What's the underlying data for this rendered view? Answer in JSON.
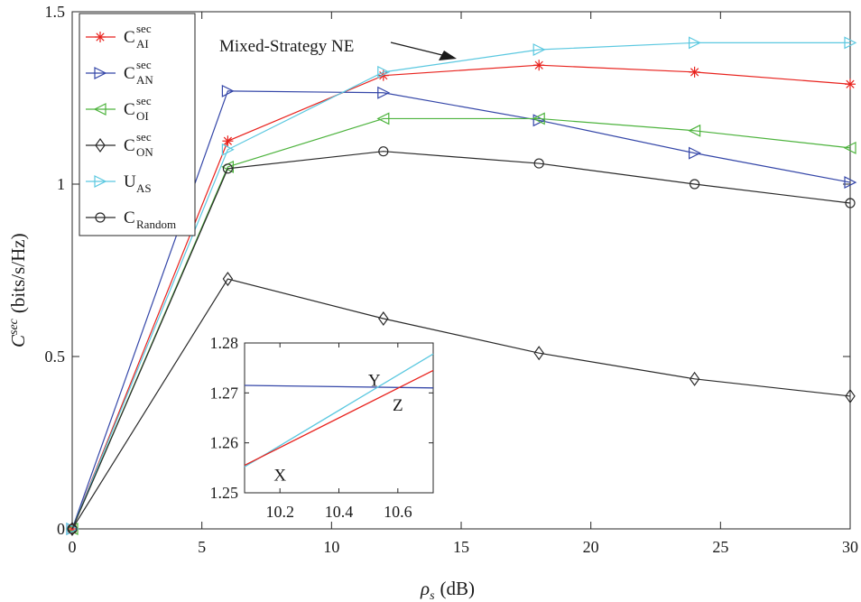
{
  "chart_data": {
    "type": "line",
    "xlabel_symbol": "ρ",
    "xlabel_sub": "s",
    "xlabel_unit": "(dB)",
    "ylabel_symbol": "C",
    "ylabel_sup": "sec",
    "ylabel_unit": "(bits/s/Hz)",
    "xlim": [
      0,
      30
    ],
    "ylim": [
      0,
      1.5
    ],
    "x_ticks": [
      0,
      5,
      10,
      15,
      20,
      25,
      30
    ],
    "y_ticks": [
      0,
      0.5,
      1,
      1.5
    ],
    "x_tick_labels": [
      "0",
      "5",
      "10",
      "15",
      "20",
      "25",
      "30"
    ],
    "y_tick_labels": [
      "0",
      "0.5",
      "1",
      "1.5"
    ],
    "x": [
      0,
      6,
      12,
      18,
      24,
      30
    ],
    "series": [
      {
        "name": "C_AI^sec",
        "label_main": "C",
        "label_sub": "AI",
        "label_sup": "sec",
        "color": "#e8221d",
        "marker": "star",
        "values": [
          0,
          1.125,
          1.315,
          1.345,
          1.325,
          1.29
        ]
      },
      {
        "name": "C_AN^sec",
        "label_main": "C",
        "label_sub": "AN",
        "label_sup": "sec",
        "color": "#3446a8",
        "marker": "triangle-right",
        "values": [
          0,
          1.27,
          1.265,
          1.185,
          1.09,
          1.005
        ]
      },
      {
        "name": "C_OI^sec",
        "label_main": "C",
        "label_sub": "OI",
        "label_sup": "sec",
        "color": "#4db33d",
        "marker": "triangle-left",
        "values": [
          0,
          1.05,
          1.19,
          1.19,
          1.155,
          1.105
        ]
      },
      {
        "name": "C_ON^sec",
        "label_main": "C",
        "label_sub": "ON",
        "label_sup": "sec",
        "color": "#2a2a2a",
        "marker": "diamond",
        "values": [
          0,
          0.725,
          0.61,
          0.51,
          0.435,
          0.385
        ]
      },
      {
        "name": "U_AS",
        "label_main": "U",
        "label_sub": "AS",
        "label_sup": "",
        "color": "#5bc8e0",
        "marker": "triangle-right",
        "values": [
          0,
          1.1,
          1.325,
          1.39,
          1.41,
          1.41
        ]
      },
      {
        "name": "C_Random",
        "label_main": "C",
        "label_sub": "Random",
        "label_sup": "",
        "color": "#2a2a2a",
        "marker": "circle",
        "values": [
          0,
          1.045,
          1.095,
          1.06,
          1.0,
          0.945
        ]
      }
    ],
    "annotation": {
      "text": "Mixed-Strategy NE",
      "target_x": 12,
      "target_y": 1.315
    },
    "inset": {
      "xlim": [
        10.08,
        10.72
      ],
      "ylim": [
        1.25,
        1.28
      ],
      "x_ticks": [
        10.2,
        10.4,
        10.6
      ],
      "y_ticks": [
        1.25,
        1.26,
        1.27,
        1.28
      ],
      "x_tick_labels": [
        "10.2",
        "10.4",
        "10.6"
      ],
      "y_tick_labels": [
        "1.25",
        "1.26",
        "1.27",
        "1.28"
      ],
      "lines": [
        {
          "name": "C_AN^sec",
          "color": "#3446a8",
          "x": [
            10.08,
            10.72
          ],
          "y": [
            1.2715,
            1.271
          ]
        },
        {
          "name": "U_AS",
          "color": "#5bc8e0",
          "x": [
            10.08,
            10.72
          ],
          "y": [
            1.2552,
            1.2778
          ]
        },
        {
          "name": "C_AI^sec",
          "color": "#e8221d",
          "x": [
            10.08,
            10.72
          ],
          "y": [
            1.2555,
            1.2745
          ]
        }
      ],
      "points": [
        {
          "label": "X",
          "x": 10.2,
          "y": 1.2535
        },
        {
          "label": "Y",
          "x": 10.52,
          "y": 1.2725
        },
        {
          "label": "Z",
          "x": 10.6,
          "y": 1.2675
        }
      ]
    }
  }
}
